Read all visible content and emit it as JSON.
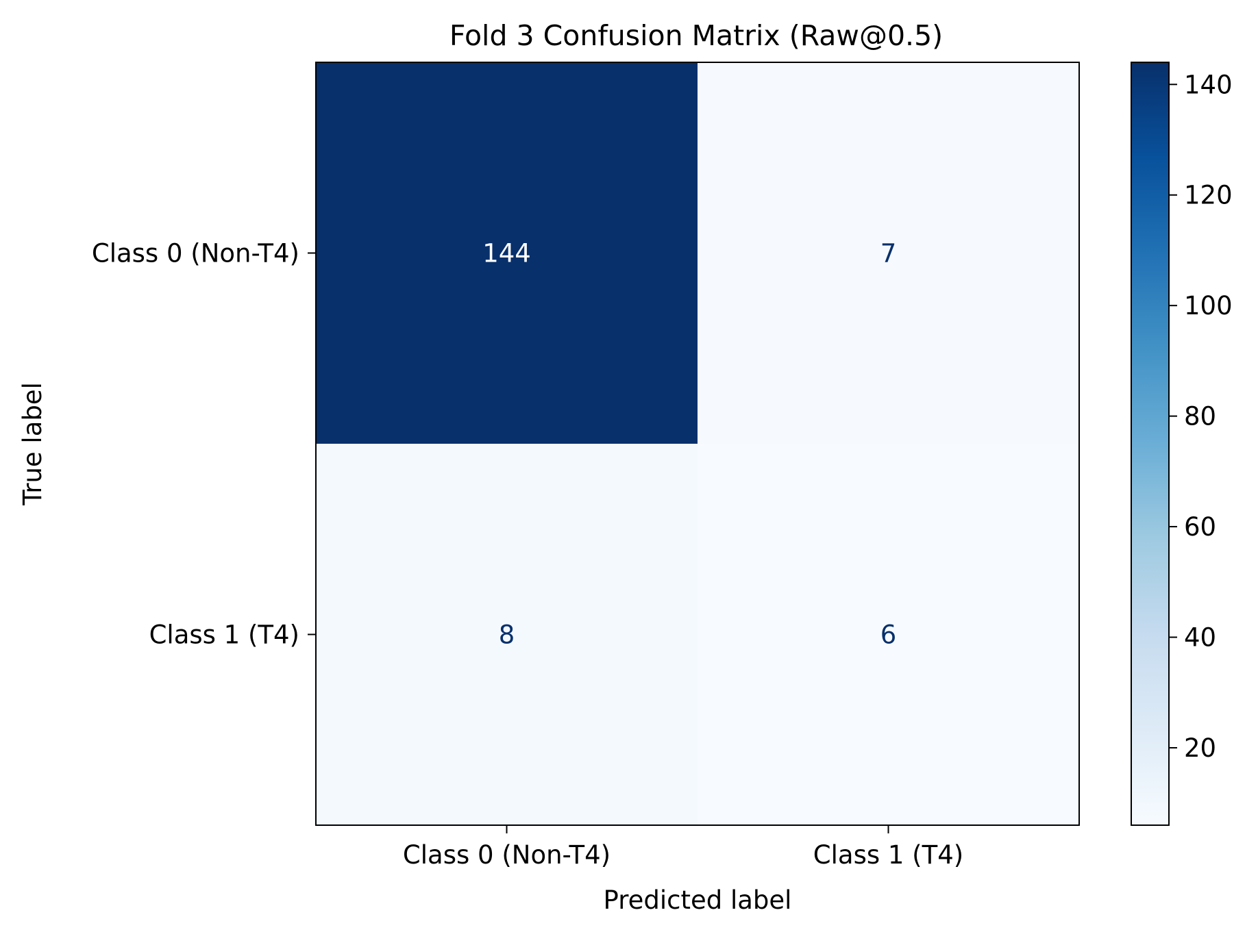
{
  "chart_data": {
    "type": "heatmap",
    "title": "Fold 3 Confusion Matrix (Raw@0.5)",
    "xlabel": "Predicted label",
    "ylabel": "True label",
    "x_categories": [
      "Class 0 (Non-T4)",
      "Class 1 (T4)"
    ],
    "y_categories": [
      "Class 0 (Non-T4)",
      "Class 1 (T4)"
    ],
    "values": [
      [
        144,
        7
      ],
      [
        8,
        6
      ]
    ],
    "colormap": "Blues",
    "colorbar": {
      "vmin": 6,
      "vmax": 144,
      "ticks": [
        20,
        40,
        60,
        80,
        100,
        120,
        140
      ]
    },
    "grid": false
  }
}
